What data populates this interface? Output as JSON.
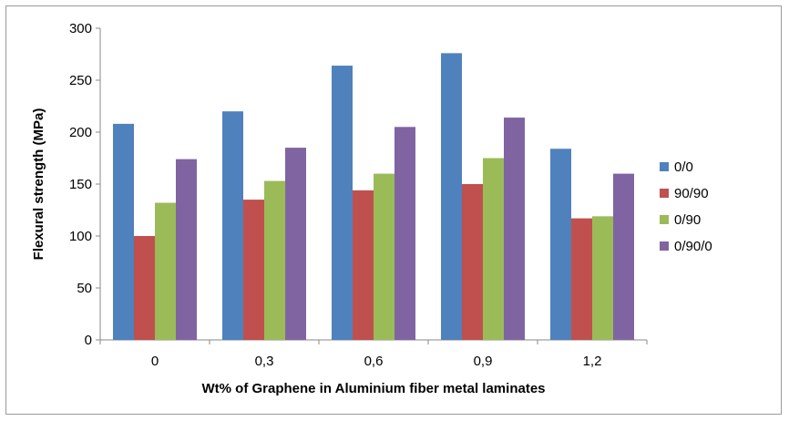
{
  "chart_data": {
    "type": "bar",
    "categories": [
      "0",
      "0,3",
      "0,6",
      "0,9",
      "1,2"
    ],
    "series": [
      {
        "name": "0/0",
        "color": "#4f81bd",
        "values": [
          208,
          220,
          264,
          276,
          184
        ]
      },
      {
        "name": "90/90",
        "color": "#c0504d",
        "values": [
          100,
          135,
          144,
          150,
          117
        ]
      },
      {
        "name": "0/90",
        "color": "#9bbb59",
        "values": [
          132,
          153,
          160,
          175,
          119
        ]
      },
      {
        "name": "0/90/0",
        "color": "#8064a2",
        "values": [
          174,
          185,
          205,
          214,
          160
        ]
      }
    ],
    "xlabel": "Wt% of Graphene in Aluminium fiber metal laminates",
    "ylabel": "Flexural strength (MPa)",
    "ylim": [
      0,
      300
    ],
    "yticks": [
      0,
      50,
      100,
      150,
      200,
      250,
      300
    ],
    "grid": false,
    "legend": "right"
  }
}
